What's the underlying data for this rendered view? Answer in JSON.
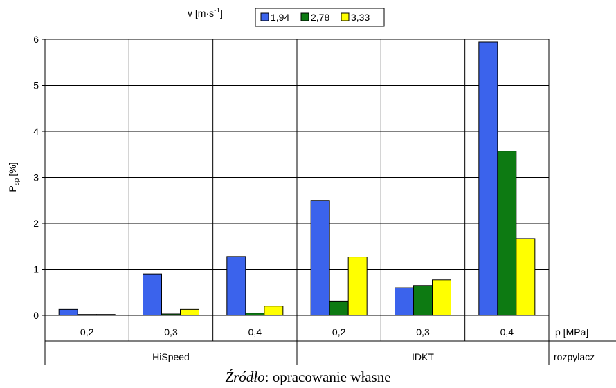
{
  "chart_data": {
    "type": "bar",
    "ylabel_main": "P",
    "ylabel_sub": "sp",
    "ylabel_unit": "[%]",
    "ylim": [
      0,
      6
    ],
    "yticks": [
      "0",
      "1",
      "2",
      "3",
      "4",
      "5",
      "6"
    ],
    "grid": true,
    "legend_placement": "top-center",
    "legend_title_main": "v [m·s",
    "legend_title_sup": "-1",
    "legend_title_end": "]",
    "categories": [
      "0,2",
      "0,3",
      "0,4",
      "0,2",
      "0,3",
      "0,4"
    ],
    "category_axis_label": "p [MPa]",
    "groups": [
      "HiSpeed",
      "IDKT"
    ],
    "group_axis_label": "rozpylacz",
    "series": [
      {
        "name": "1,94",
        "color": "#3b63ec",
        "values": [
          0.13,
          0.9,
          1.28,
          2.5,
          0.6,
          5.94
        ]
      },
      {
        "name": "2,78",
        "color": "#0d7a12",
        "values": [
          0.02,
          0.03,
          0.05,
          0.31,
          0.65,
          3.57
        ]
      },
      {
        "name": "3,33",
        "color": "#ffff00",
        "values": [
          0.02,
          0.13,
          0.2,
          1.27,
          0.77,
          1.67
        ]
      }
    ]
  },
  "source": {
    "label": "Źródło",
    "text": ": opracowanie własne"
  }
}
